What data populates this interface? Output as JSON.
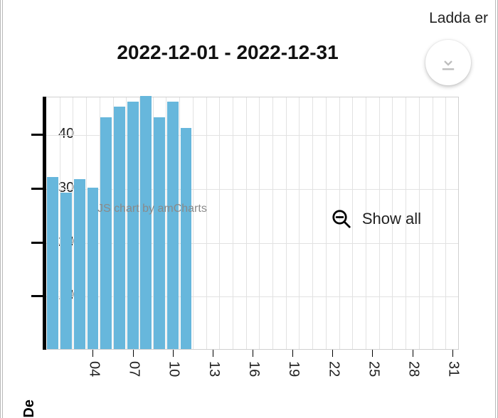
{
  "header": {
    "top_right_text": "Ladda er",
    "title": "2022-12-01 - 2022-12-31"
  },
  "chart": {
    "type": "bar",
    "credit_text": "JS chart by amCharts",
    "show_all_label": "Show all",
    "bar_color": "#67b7dc",
    "grid_color": "#e2e2e2",
    "axis_color": "#000000",
    "background_color": "#ffffff",
    "days_in_month": 31,
    "ylim": [
      0,
      47
    ],
    "y_ticks": [
      10,
      20,
      30,
      40
    ],
    "x_tick_labels": [
      "04",
      "07",
      "10",
      "13",
      "16",
      "19",
      "22",
      "25",
      "28",
      "31"
    ],
    "x_tick_positions": [
      4,
      7,
      10,
      13,
      16,
      19,
      22,
      25,
      28,
      31
    ],
    "bar_width_ratio": 0.85,
    "values": [
      32,
      29,
      31.5,
      30,
      43,
      45,
      46,
      47,
      43,
      46,
      41
    ],
    "x_axis_title_partial": "De"
  },
  "icons": {
    "download": "download-icon",
    "zoom_out": "zoom-out-icon"
  }
}
